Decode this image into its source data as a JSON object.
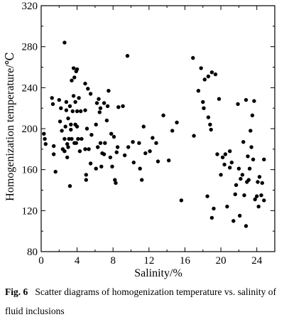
{
  "chart_data": {
    "type": "scatter",
    "xlabel": "Salinity/%",
    "ylabel": "Homogenization temperature/℃",
    "xlim": [
      0,
      26
    ],
    "ylim": [
      80,
      320
    ],
    "xticks": [
      "0",
      "4",
      "8",
      "12",
      "16",
      "20",
      "24"
    ],
    "yticks": [
      "80",
      "120",
      "160",
      "200",
      "240",
      "280",
      "320"
    ],
    "grid": false,
    "points": [
      [
        0.3,
        195
      ],
      [
        0.4,
        190
      ],
      [
        0.5,
        185
      ],
      [
        1.2,
        230
      ],
      [
        1.3,
        224
      ],
      [
        1.4,
        183
      ],
      [
        1.4,
        175
      ],
      [
        1.6,
        158
      ],
      [
        2.0,
        228
      ],
      [
        2.1,
        207
      ],
      [
        2.2,
        220
      ],
      [
        2.3,
        198
      ],
      [
        2.4,
        180
      ],
      [
        2.6,
        284
      ],
      [
        2.6,
        178
      ],
      [
        2.6,
        190
      ],
      [
        2.7,
        202
      ],
      [
        2.8,
        226
      ],
      [
        2.8,
        218
      ],
      [
        2.9,
        185
      ],
      [
        2.9,
        172
      ],
      [
        3.0,
        182
      ],
      [
        3.0,
        210
      ],
      [
        3.1,
        190
      ],
      [
        3.2,
        144
      ],
      [
        3.2,
        222
      ],
      [
        3.3,
        199
      ],
      [
        3.3,
        204
      ],
      [
        3.4,
        247
      ],
      [
        3.4,
        190
      ],
      [
        3.5,
        217
      ],
      [
        3.6,
        259
      ],
      [
        3.6,
        232
      ],
      [
        3.7,
        250
      ],
      [
        3.7,
        186
      ],
      [
        3.8,
        226
      ],
      [
        3.8,
        204
      ],
      [
        3.9,
        256
      ],
      [
        3.9,
        186
      ],
      [
        4.0,
        258
      ],
      [
        4.0,
        217
      ],
      [
        4.0,
        202
      ],
      [
        4.1,
        190
      ],
      [
        4.2,
        230
      ],
      [
        4.3,
        178
      ],
      [
        4.4,
        217
      ],
      [
        4.5,
        190
      ],
      [
        4.9,
        244
      ],
      [
        4.9,
        180
      ],
      [
        4.9,
        218
      ],
      [
        5.0,
        155
      ],
      [
        5.0,
        150
      ],
      [
        5.1,
        200
      ],
      [
        5.2,
        239
      ],
      [
        5.3,
        180
      ],
      [
        5.5,
        234
      ],
      [
        5.5,
        166
      ],
      [
        5.6,
        194
      ],
      [
        6.1,
        204
      ],
      [
        6.1,
        161
      ],
      [
        6.2,
        225
      ],
      [
        6.3,
        182
      ],
      [
        6.4,
        229
      ],
      [
        6.5,
        216
      ],
      [
        6.6,
        220
      ],
      [
        6.6,
        186
      ],
      [
        6.7,
        163
      ],
      [
        6.8,
        176
      ],
      [
        7.0,
        225
      ],
      [
        7.0,
        175
      ],
      [
        7.1,
        186
      ],
      [
        7.3,
        208
      ],
      [
        7.4,
        222
      ],
      [
        7.5,
        237
      ],
      [
        7.7,
        172
      ],
      [
        7.8,
        195
      ],
      [
        7.9,
        163
      ],
      [
        8.1,
        192
      ],
      [
        8.2,
        150
      ],
      [
        8.3,
        147
      ],
      [
        8.4,
        177
      ],
      [
        8.5,
        182
      ],
      [
        8.6,
        221
      ],
      [
        9.1,
        222
      ],
      [
        9.3,
        174
      ],
      [
        9.6,
        271
      ],
      [
        9.7,
        182
      ],
      [
        10.2,
        187
      ],
      [
        10.3,
        167
      ],
      [
        10.9,
        186
      ],
      [
        11.0,
        161
      ],
      [
        11.2,
        150
      ],
      [
        11.4,
        202
      ],
      [
        11.6,
        176
      ],
      [
        12.1,
        178
      ],
      [
        12.4,
        191
      ],
      [
        12.8,
        186
      ],
      [
        13.0,
        168
      ],
      [
        13.6,
        213
      ],
      [
        14.2,
        169
      ],
      [
        14.6,
        198
      ],
      [
        15.1,
        206
      ],
      [
        15.6,
        130
      ],
      [
        16.9,
        269
      ],
      [
        17.0,
        193
      ],
      [
        17.5,
        237
      ],
      [
        17.8,
        259
      ],
      [
        18.0,
        226
      ],
      [
        18.1,
        220
      ],
      [
        18.2,
        248
      ],
      [
        18.5,
        134
      ],
      [
        18.6,
        211
      ],
      [
        18.6,
        251
      ],
      [
        18.8,
        204
      ],
      [
        18.9,
        199
      ],
      [
        19.0,
        255
      ],
      [
        19.0,
        113
      ],
      [
        19.2,
        122
      ],
      [
        19.4,
        253
      ],
      [
        19.6,
        175
      ],
      [
        19.8,
        229
      ],
      [
        20.0,
        155
      ],
      [
        20.2,
        172
      ],
      [
        20.4,
        165
      ],
      [
        20.5,
        175
      ],
      [
        20.7,
        124
      ],
      [
        21.0,
        162
      ],
      [
        21.0,
        178
      ],
      [
        21.2,
        167
      ],
      [
        21.4,
        110
      ],
      [
        21.6,
        136
      ],
      [
        21.7,
        145
      ],
      [
        21.9,
        224
      ],
      [
        22.0,
        161
      ],
      [
        22.1,
        115
      ],
      [
        22.2,
        151
      ],
      [
        22.4,
        155
      ],
      [
        22.5,
        187
      ],
      [
        22.6,
        135
      ],
      [
        22.8,
        228
      ],
      [
        22.8,
        105
      ],
      [
        22.9,
        148
      ],
      [
        23.0,
        173
      ],
      [
        23.1,
        150
      ],
      [
        23.2,
        161
      ],
      [
        23.3,
        198
      ],
      [
        23.4,
        182
      ],
      [
        23.5,
        213
      ],
      [
        23.6,
        170
      ],
      [
        23.7,
        227
      ],
      [
        23.8,
        131
      ],
      [
        24.0,
        134
      ],
      [
        24.1,
        148
      ],
      [
        24.2,
        124
      ],
      [
        24.3,
        153
      ],
      [
        24.5,
        135
      ],
      [
        24.6,
        147
      ],
      [
        24.8,
        170
      ],
      [
        24.8,
        130
      ]
    ]
  },
  "caption": {
    "label": "Fig. 6",
    "text": "Scatter diagrams of homogenization temperature vs. salinity of fluid inclusions"
  }
}
